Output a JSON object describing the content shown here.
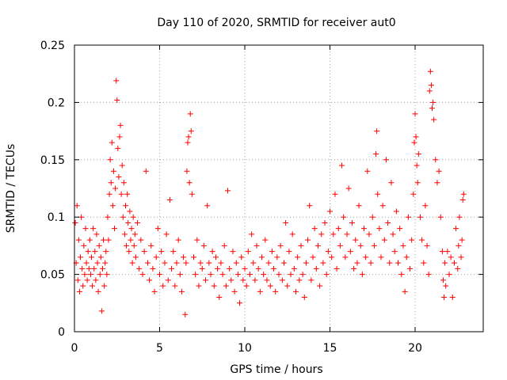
{
  "chart_data": {
    "type": "scatter",
    "title": "Day 110 of 2020, SRMTID for receiver aut0",
    "xlabel": "GPS time / hours",
    "ylabel": "SRMTID / TECUs",
    "xlim": [
      0,
      24
    ],
    "ylim": [
      0,
      0.25
    ],
    "xticks": [
      0,
      5,
      10,
      15,
      20
    ],
    "yticks": [
      0,
      0.05,
      0.1,
      0.15,
      0.2,
      0.25
    ],
    "xtick_labels": [
      "0",
      "5",
      "10",
      "15",
      "20"
    ],
    "ytick_labels": [
      "0",
      "0.05",
      "0.1",
      "0.15",
      "0.2",
      "0.25"
    ],
    "grid": true,
    "marker": "+",
    "series": [
      {
        "name": "SRMTID",
        "color": "#ff0000",
        "points": [
          [
            0.05,
            0.095
          ],
          [
            0.1,
            0.06
          ],
          [
            0.15,
            0.11
          ],
          [
            0.2,
            0.045
          ],
          [
            0.25,
            0.08
          ],
          [
            0.3,
            0.035
          ],
          [
            0.35,
            0.065
          ],
          [
            0.4,
            0.1
          ],
          [
            0.45,
            0.055
          ],
          [
            0.5,
            0.04
          ],
          [
            0.55,
            0.075
          ],
          [
            0.6,
            0.05
          ],
          [
            0.65,
            0.09
          ],
          [
            0.7,
            0.06
          ],
          [
            0.75,
            0.045
          ],
          [
            0.8,
            0.07
          ],
          [
            0.85,
            0.055
          ],
          [
            0.9,
            0.08
          ],
          [
            0.95,
            0.05
          ],
          [
            1.0,
            0.065
          ],
          [
            1.05,
            0.04
          ],
          [
            1.1,
            0.09
          ],
          [
            1.15,
            0.055
          ],
          [
            1.2,
            0.07
          ],
          [
            1.25,
            0.045
          ],
          [
            1.3,
            0.085
          ],
          [
            1.35,
            0.06
          ],
          [
            1.4,
            0.035
          ],
          [
            1.45,
            0.075
          ],
          [
            1.5,
            0.05
          ],
          [
            1.55,
            0.065
          ],
          [
            1.6,
            0.018
          ],
          [
            1.65,
            0.055
          ],
          [
            1.7,
            0.08
          ],
          [
            1.75,
            0.04
          ],
          [
            1.8,
            0.06
          ],
          [
            1.85,
            0.07
          ],
          [
            1.9,
            0.05
          ],
          [
            1.95,
            0.1
          ],
          [
            2.0,
            0.08
          ],
          [
            2.05,
            0.12
          ],
          [
            2.1,
            0.15
          ],
          [
            2.15,
            0.13
          ],
          [
            2.2,
            0.165
          ],
          [
            2.25,
            0.11
          ],
          [
            2.3,
            0.14
          ],
          [
            2.35,
            0.09
          ],
          [
            2.4,
            0.125
          ],
          [
            2.45,
            0.219
          ],
          [
            2.5,
            0.202
          ],
          [
            2.55,
            0.16
          ],
          [
            2.6,
            0.135
          ],
          [
            2.65,
            0.17
          ],
          [
            2.7,
            0.18
          ],
          [
            2.75,
            0.12
          ],
          [
            2.8,
            0.145
          ],
          [
            2.85,
            0.1
          ],
          [
            2.9,
            0.13
          ],
          [
            2.95,
            0.085
          ],
          [
            3.0,
            0.11
          ],
          [
            3.05,
            0.075
          ],
          [
            3.1,
            0.12
          ],
          [
            3.15,
            0.095
          ],
          [
            3.2,
            0.07
          ],
          [
            3.25,
            0.105
          ],
          [
            3.3,
            0.08
          ],
          [
            3.35,
            0.09
          ],
          [
            3.4,
            0.06
          ],
          [
            3.45,
            0.1
          ],
          [
            3.5,
            0.075
          ],
          [
            3.55,
            0.085
          ],
          [
            3.6,
            0.065
          ],
          [
            3.7,
            0.095
          ],
          [
            3.8,
            0.055
          ],
          [
            3.9,
            0.08
          ],
          [
            4.0,
            0.05
          ],
          [
            4.1,
            0.07
          ],
          [
            4.2,
            0.14
          ],
          [
            4.3,
            0.06
          ],
          [
            4.4,
            0.045
          ],
          [
            4.5,
            0.075
          ],
          [
            4.6,
            0.055
          ],
          [
            4.7,
            0.035
          ],
          [
            4.8,
            0.065
          ],
          [
            4.9,
            0.09
          ],
          [
            5.0,
            0.05
          ],
          [
            5.1,
            0.07
          ],
          [
            5.2,
            0.04
          ],
          [
            5.3,
            0.06
          ],
          [
            5.4,
            0.085
          ],
          [
            5.5,
            0.045
          ],
          [
            5.6,
            0.115
          ],
          [
            5.7,
            0.055
          ],
          [
            5.8,
            0.07
          ],
          [
            5.9,
            0.04
          ],
          [
            6.0,
            0.06
          ],
          [
            6.1,
            0.08
          ],
          [
            6.2,
            0.05
          ],
          [
            6.3,
            0.035
          ],
          [
            6.4,
            0.065
          ],
          [
            6.5,
            0.015
          ],
          [
            6.55,
            0.06
          ],
          [
            6.6,
            0.14
          ],
          [
            6.65,
            0.165
          ],
          [
            6.7,
            0.17
          ],
          [
            6.75,
            0.13
          ],
          [
            6.8,
            0.19
          ],
          [
            6.85,
            0.175
          ],
          [
            6.9,
            0.12
          ],
          [
            7.0,
            0.065
          ],
          [
            7.1,
            0.05
          ],
          [
            7.2,
            0.08
          ],
          [
            7.3,
            0.04
          ],
          [
            7.4,
            0.06
          ],
          [
            7.5,
            0.055
          ],
          [
            7.6,
            0.075
          ],
          [
            7.7,
            0.045
          ],
          [
            7.8,
            0.11
          ],
          [
            7.9,
            0.06
          ],
          [
            8.0,
            0.05
          ],
          [
            8.1,
            0.07
          ],
          [
            8.2,
            0.04
          ],
          [
            8.3,
            0.065
          ],
          [
            8.4,
            0.055
          ],
          [
            8.5,
            0.03
          ],
          [
            8.6,
            0.06
          ],
          [
            8.7,
            0.05
          ],
          [
            8.8,
            0.075
          ],
          [
            8.9,
            0.04
          ],
          [
            9.0,
            0.123
          ],
          [
            9.1,
            0.055
          ],
          [
            9.2,
            0.045
          ],
          [
            9.3,
            0.07
          ],
          [
            9.4,
            0.035
          ],
          [
            9.5,
            0.06
          ],
          [
            9.6,
            0.05
          ],
          [
            9.7,
            0.025
          ],
          [
            9.8,
            0.065
          ],
          [
            9.9,
            0.045
          ],
          [
            10.0,
            0.055
          ],
          [
            10.1,
            0.04
          ],
          [
            10.2,
            0.07
          ],
          [
            10.3,
            0.05
          ],
          [
            10.4,
            0.085
          ],
          [
            10.5,
            0.06
          ],
          [
            10.6,
            0.045
          ],
          [
            10.7,
            0.075
          ],
          [
            10.8,
            0.055
          ],
          [
            10.9,
            0.035
          ],
          [
            11.0,
            0.065
          ],
          [
            11.1,
            0.05
          ],
          [
            11.2,
            0.08
          ],
          [
            11.3,
            0.045
          ],
          [
            11.4,
            0.06
          ],
          [
            11.5,
            0.04
          ],
          [
            11.6,
            0.07
          ],
          [
            11.7,
            0.055
          ],
          [
            11.8,
            0.035
          ],
          [
            11.9,
            0.065
          ],
          [
            12.0,
            0.05
          ],
          [
            12.1,
            0.075
          ],
          [
            12.2,
            0.045
          ],
          [
            12.3,
            0.06
          ],
          [
            12.4,
            0.095
          ],
          [
            12.5,
            0.04
          ],
          [
            12.6,
            0.07
          ],
          [
            12.7,
            0.05
          ],
          [
            12.8,
            0.085
          ],
          [
            12.9,
            0.055
          ],
          [
            13.0,
            0.035
          ],
          [
            13.1,
            0.065
          ],
          [
            13.2,
            0.045
          ],
          [
            13.3,
            0.075
          ],
          [
            13.4,
            0.05
          ],
          [
            13.5,
            0.03
          ],
          [
            13.6,
            0.06
          ],
          [
            13.7,
            0.08
          ],
          [
            13.8,
            0.11
          ],
          [
            13.9,
            0.045
          ],
          [
            14.0,
            0.065
          ],
          [
            14.1,
            0.09
          ],
          [
            14.2,
            0.055
          ],
          [
            14.3,
            0.075
          ],
          [
            14.4,
            0.04
          ],
          [
            14.5,
            0.085
          ],
          [
            14.6,
            0.06
          ],
          [
            14.7,
            0.095
          ],
          [
            14.8,
            0.05
          ],
          [
            14.9,
            0.07
          ],
          [
            15.0,
            0.105
          ],
          [
            15.1,
            0.065
          ],
          [
            15.2,
            0.085
          ],
          [
            15.3,
            0.12
          ],
          [
            15.4,
            0.055
          ],
          [
            15.5,
            0.09
          ],
          [
            15.6,
            0.075
          ],
          [
            15.7,
            0.145
          ],
          [
            15.8,
            0.1
          ],
          [
            15.9,
            0.065
          ],
          [
            16.0,
            0.085
          ],
          [
            16.1,
            0.125
          ],
          [
            16.2,
            0.07
          ],
          [
            16.3,
            0.095
          ],
          [
            16.4,
            0.055
          ],
          [
            16.5,
            0.08
          ],
          [
            16.6,
            0.06
          ],
          [
            16.7,
            0.11
          ],
          [
            16.8,
            0.075
          ],
          [
            16.9,
            0.05
          ],
          [
            17.0,
            0.09
          ],
          [
            17.1,
            0.065
          ],
          [
            17.2,
            0.14
          ],
          [
            17.3,
            0.085
          ],
          [
            17.4,
            0.06
          ],
          [
            17.5,
            0.1
          ],
          [
            17.6,
            0.075
          ],
          [
            17.7,
            0.155
          ],
          [
            17.75,
            0.175
          ],
          [
            17.8,
            0.12
          ],
          [
            17.9,
            0.09
          ],
          [
            18.0,
            0.065
          ],
          [
            18.1,
            0.11
          ],
          [
            18.2,
            0.08
          ],
          [
            18.3,
            0.15
          ],
          [
            18.4,
            0.095
          ],
          [
            18.5,
            0.06
          ],
          [
            18.6,
            0.13
          ],
          [
            18.7,
            0.085
          ],
          [
            18.8,
            0.07
          ],
          [
            18.9,
            0.105
          ],
          [
            19.0,
            0.06
          ],
          [
            19.1,
            0.09
          ],
          [
            19.2,
            0.05
          ],
          [
            19.3,
            0.075
          ],
          [
            19.4,
            0.035
          ],
          [
            19.5,
            0.065
          ],
          [
            19.6,
            0.1
          ],
          [
            19.7,
            0.055
          ],
          [
            19.8,
            0.08
          ],
          [
            19.9,
            0.12
          ],
          [
            19.95,
            0.165
          ],
          [
            20.0,
            0.19
          ],
          [
            20.05,
            0.17
          ],
          [
            20.1,
            0.145
          ],
          [
            20.15,
            0.13
          ],
          [
            20.2,
            0.155
          ],
          [
            20.3,
            0.1
          ],
          [
            20.4,
            0.08
          ],
          [
            20.5,
            0.06
          ],
          [
            20.6,
            0.11
          ],
          [
            20.7,
            0.075
          ],
          [
            20.8,
            0.05
          ],
          [
            20.85,
            0.21
          ],
          [
            20.9,
            0.227
          ],
          [
            20.95,
            0.215
          ],
          [
            21.0,
            0.195
          ],
          [
            21.05,
            0.2
          ],
          [
            21.1,
            0.185
          ],
          [
            21.2,
            0.15
          ],
          [
            21.3,
            0.13
          ],
          [
            21.4,
            0.14
          ],
          [
            21.5,
            0.1
          ],
          [
            21.6,
            0.07
          ],
          [
            21.65,
            0.045
          ],
          [
            21.7,
            0.03
          ],
          [
            21.75,
            0.06
          ],
          [
            21.8,
            0.04
          ],
          [
            21.9,
            0.07
          ],
          [
            22.0,
            0.05
          ],
          [
            22.1,
            0.065
          ],
          [
            22.2,
            0.03
          ],
          [
            22.3,
            0.06
          ],
          [
            22.4,
            0.09
          ],
          [
            22.5,
            0.055
          ],
          [
            22.55,
            0.075
          ],
          [
            22.6,
            0.1
          ],
          [
            22.7,
            0.065
          ],
          [
            22.75,
            0.08
          ],
          [
            22.8,
            0.115
          ],
          [
            22.85,
            0.12
          ]
        ]
      }
    ]
  }
}
